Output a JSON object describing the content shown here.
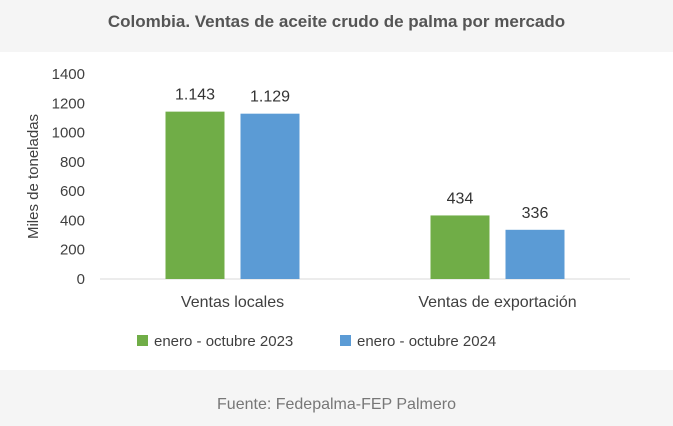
{
  "title": "Colombia. Ventas de aceite crudo de palma por mercado",
  "source": "Fuente: Fedepalma-FEP Palmero",
  "chart_data": {
    "type": "bar",
    "title": "Colombia. Ventas de aceite crudo de palma por mercado",
    "xlabel": "",
    "ylabel": "Miles de toneladas",
    "ylim": [
      0,
      1400
    ],
    "yticks": [
      0,
      200,
      400,
      600,
      800,
      1000,
      1200,
      1400
    ],
    "categories": [
      "Ventas locales",
      "Ventas de exportación"
    ],
    "series": [
      {
        "name": "enero - octubre 2023",
        "values": [
          1143,
          434
        ],
        "labels": [
          "1.143",
          "434"
        ],
        "color": "#70ad47"
      },
      {
        "name": "enero - octubre 2024",
        "values": [
          1129,
          336
        ],
        "labels": [
          "1.129",
          "336"
        ],
        "color": "#5b9bd5"
      }
    ],
    "grid": false,
    "legend": "bottom"
  }
}
